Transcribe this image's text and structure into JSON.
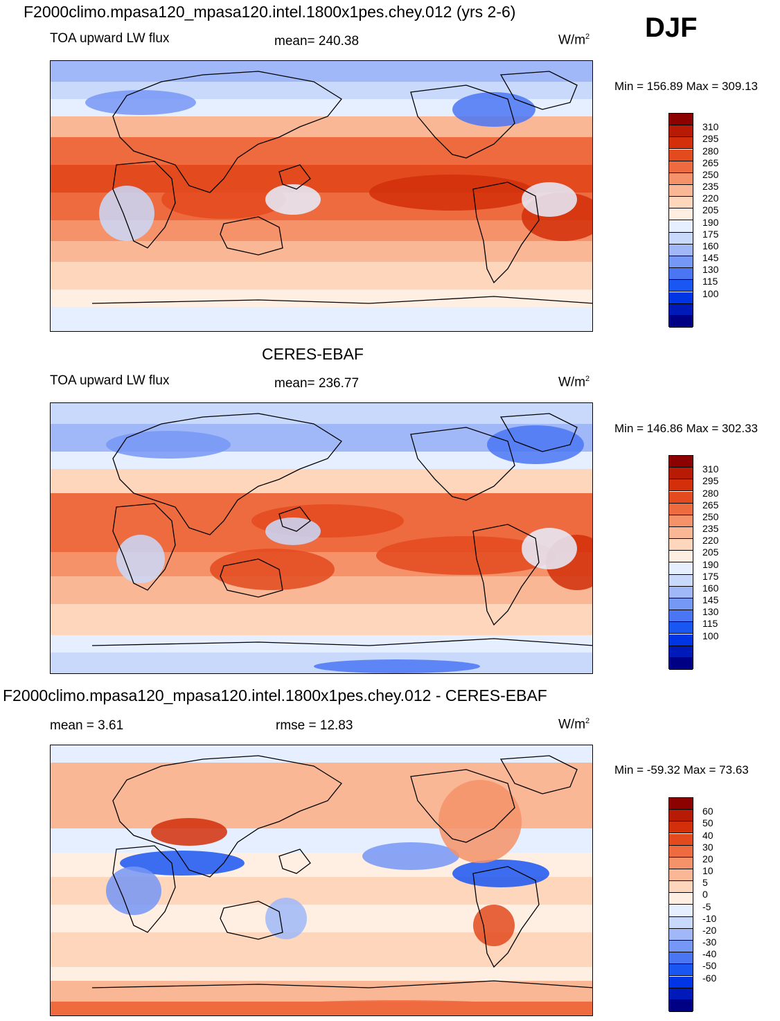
{
  "season": "DJF",
  "palette_abs": [
    "#000085",
    "#0019b9",
    "#0035e6",
    "#1a56f2",
    "#4a76f4",
    "#7597f6",
    "#a0b8f8",
    "#c9d9fb",
    "#e6efff",
    "#ffefe3",
    "#fdd6bc",
    "#f9b795",
    "#f59269",
    "#ee6a3f",
    "#e34a1e",
    "#d22f0a",
    "#b81b05",
    "#8b0200"
  ],
  "palette_diff": [
    "#000085",
    "#0019b9",
    "#0035e6",
    "#1a56f2",
    "#4a76f4",
    "#7597f6",
    "#a0b8f8",
    "#c9d9fb",
    "#e6efff",
    "#ffefe3",
    "#fdd6bc",
    "#f9b795",
    "#f59269",
    "#ee6a3f",
    "#e34a1e",
    "#d22f0a",
    "#b81b05",
    "#8b0200"
  ],
  "panels": [
    {
      "main_title": "F2000climo.mpasa120_mpasa120.intel.1800x1pes.chey.012 (yrs 2-6)",
      "left_label": "TOA upward LW flux",
      "center_label": "mean= 240.38",
      "units": "W/m",
      "units_sup": "2",
      "minmax": "Min = 156.89 Max = 309.13",
      "scale": "abs",
      "levels": [
        "310",
        "295",
        "280",
        "265",
        "250",
        "235",
        "220",
        "205",
        "190",
        "175",
        "160",
        "145",
        "130",
        "115",
        "100"
      ]
    },
    {
      "main_title": "CERES-EBAF",
      "left_label": "TOA upward LW flux",
      "center_label": "mean= 236.77",
      "units": "W/m",
      "units_sup": "2",
      "minmax": "Min = 146.86 Max = 302.33",
      "scale": "abs",
      "levels": [
        "310",
        "295",
        "280",
        "265",
        "250",
        "235",
        "220",
        "205",
        "190",
        "175",
        "160",
        "145",
        "130",
        "115",
        "100"
      ]
    },
    {
      "main_title": "F2000climo.mpasa120_mpasa120.intel.1800x1pes.chey.012 - CERES-EBAF",
      "left_label": "mean =   3.61",
      "center_label": "rmse =  12.83",
      "units": "W/m",
      "units_sup": "2",
      "minmax": "Min = -59.32 Max =  73.63",
      "scale": "diff",
      "levels": [
        "60",
        "50",
        "40",
        "30",
        "20",
        "10",
        "5",
        "0",
        "-5",
        "-10",
        "-20",
        "-30",
        "-40",
        "-50",
        "-60"
      ]
    }
  ]
}
